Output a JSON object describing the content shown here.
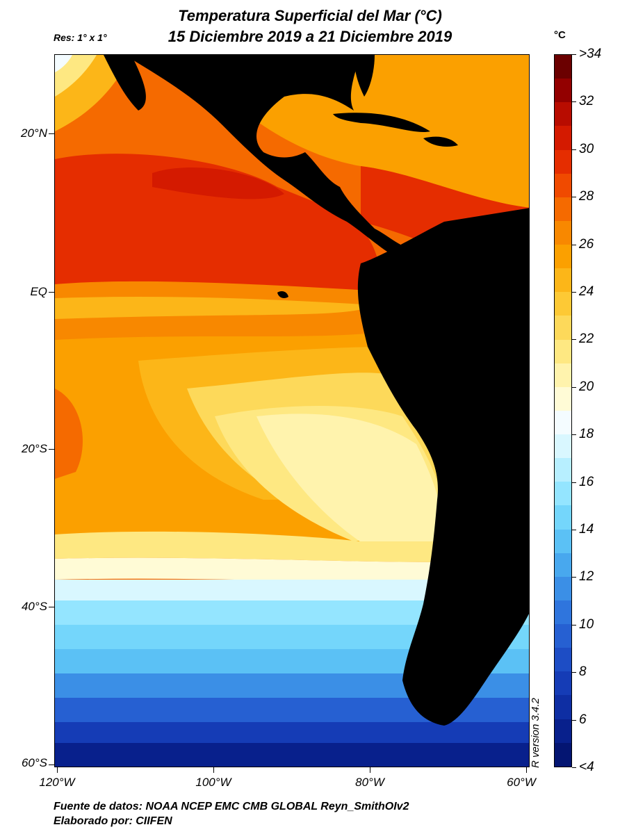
{
  "title_line1": "Temperatura Superficial del Mar (°C)",
  "title_line2": "15 Diciembre 2019 a 21 Diciembre 2019",
  "resolution": "Res: 1° x 1°",
  "unit": "°C",
  "lat_labels": [
    "20°N",
    "EQ",
    "20°S",
    "40°S",
    "60°S"
  ],
  "lon_labels": [
    "120°W",
    "100°W",
    "80°W",
    "60°W"
  ],
  "colorbar_labels": [
    ">34",
    "32",
    "30",
    "28",
    "26",
    "24",
    "22",
    "20",
    "18",
    "16",
    "14",
    "12",
    "10",
    "8",
    "6",
    "<4"
  ],
  "colorbar_colors": [
    "#6b0000",
    "#930000",
    "#b80c00",
    "#d41a00",
    "#e52d00",
    "#f04a00",
    "#f56a00",
    "#f88800",
    "#fba000",
    "#fcb618",
    "#fdc935",
    "#fdd95a",
    "#fee882",
    "#fff3ad",
    "#fffbd6",
    "#f4fcff",
    "#d9f7ff",
    "#b7efff",
    "#94e5ff",
    "#74d6fb",
    "#5bc1f5",
    "#48a8ee",
    "#3b8fe6",
    "#2f75dd",
    "#2660d2",
    "#1d4dc5",
    "#153cb6",
    "#0e2ea3",
    "#08208c",
    "#041572"
  ],
  "footer_line1": "Fuente de datos: NOAA NCEP EMC CMB GLOBAL Reyn_SmithOIv2",
  "footer_line2": "Elaborado por: CIIFEN",
  "r_version": "R version 3.4.2"
}
